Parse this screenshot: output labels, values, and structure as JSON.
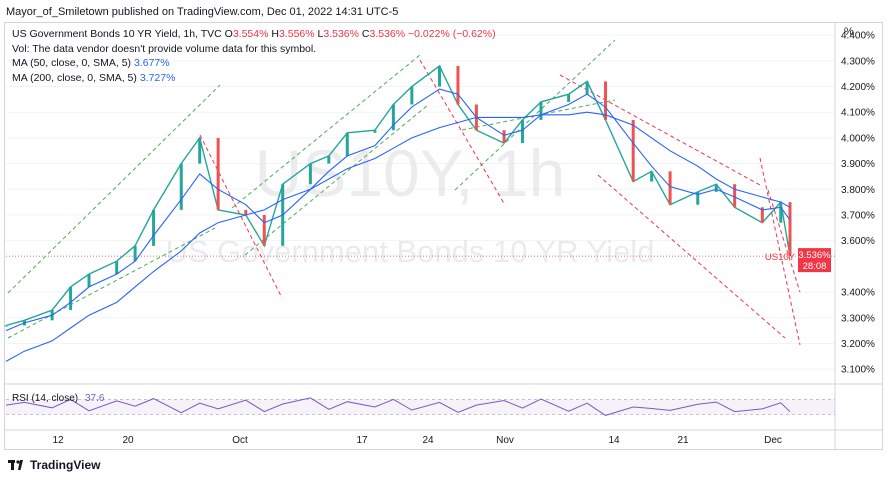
{
  "header": {
    "published": "Mayor_of_Smiletown published on TradingView.com, Dec 01, 2022 14:31 UTC-5"
  },
  "legend": {
    "title": "US Government Bonds 10 YR Yield, 1h, TVC",
    "o_label": "O",
    "o_value": "3.554%",
    "h_label": "H",
    "h_value": "3.556%",
    "l_label": "L",
    "l_value": "3.536%",
    "c_label": "C",
    "c_value": "3.536%",
    "change": "−0.022% (−0.62%)",
    "vol_line": "Vol: The data vendor doesn't provide volume data for this symbol.",
    "ma50_label": "MA (50, close, 0, SMA, 5)",
    "ma50_value": "3.677%",
    "ma200_label": "MA (200, close, 0, SMA, 5)",
    "ma200_value": "3.727%"
  },
  "watermark": {
    "symbol": "US10Y, 1h",
    "name": "US Government Bonds 10 YR Yield"
  },
  "price_axis": {
    "unit": "%",
    "ticks": [
      "4.400%",
      "4.300%",
      "4.200%",
      "4.100%",
      "4.000%",
      "3.900%",
      "3.800%",
      "3.700%",
      "3.600%",
      "3.400%",
      "3.300%",
      "3.200%",
      "3.100%"
    ]
  },
  "last_price": {
    "symbol": "US10Y",
    "value": "3.536%",
    "countdown": "28:08"
  },
  "rsi": {
    "label": "RSI (14, close)",
    "value": "37.6"
  },
  "time_axis": {
    "ticks": [
      "12",
      "20",
      "Oct",
      "17",
      "24",
      "Nov",
      "14",
      "21",
      "Dec"
    ]
  },
  "footer": {
    "logo_text": "TradingView"
  },
  "colors": {
    "up": "#26a69a",
    "down": "#ef5350",
    "ma50": "#2962ff",
    "ma200": "#2962ff",
    "rsi": "#7e57c2",
    "channel_up": "#4caf50",
    "channel_down": "#f23645",
    "last_price": "#f23645"
  },
  "chart_data": {
    "type": "line",
    "title": "US Government Bonds 10 YR Yield, 1h, TVC",
    "ylabel": "%",
    "ylim": [
      3.05,
      4.42
    ],
    "x_dates": [
      "2022-09-07",
      "2022-09-09",
      "2022-09-12",
      "2022-09-14",
      "2022-09-16",
      "2022-09-19",
      "2022-09-21",
      "2022-09-23",
      "2022-09-26",
      "2022-09-28",
      "2022-09-30",
      "2022-10-03",
      "2022-10-05",
      "2022-10-07",
      "2022-10-10",
      "2022-10-12",
      "2022-10-14",
      "2022-10-17",
      "2022-10-19",
      "2022-10-21",
      "2022-10-24",
      "2022-10-26",
      "2022-10-28",
      "2022-10-31",
      "2022-11-02",
      "2022-11-04",
      "2022-11-07",
      "2022-11-09",
      "2022-11-11",
      "2022-11-14",
      "2022-11-16",
      "2022-11-18",
      "2022-11-21",
      "2022-11-23",
      "2022-11-25",
      "2022-11-28",
      "2022-11-30",
      "2022-12-01"
    ],
    "series": [
      {
        "name": "US10Y",
        "values": [
          3.27,
          3.29,
          3.33,
          3.42,
          3.47,
          3.52,
          3.58,
          3.72,
          3.9,
          4.0,
          3.72,
          3.7,
          3.58,
          3.82,
          3.9,
          3.93,
          4.02,
          4.03,
          4.13,
          4.2,
          4.28,
          4.13,
          4.03,
          3.98,
          4.07,
          4.14,
          4.17,
          4.22,
          4.07,
          3.83,
          3.87,
          3.74,
          3.79,
          3.82,
          3.73,
          3.67,
          3.75,
          3.54
        ]
      },
      {
        "name": "MA (50, close, 0, SMA, 5)",
        "values": [
          3.25,
          3.28,
          3.31,
          3.36,
          3.42,
          3.47,
          3.52,
          3.62,
          3.76,
          3.86,
          3.8,
          3.74,
          3.67,
          3.7,
          3.8,
          3.87,
          3.93,
          3.97,
          4.05,
          4.12,
          4.19,
          4.17,
          4.08,
          4.01,
          4.03,
          4.09,
          4.13,
          4.17,
          4.12,
          3.98,
          3.89,
          3.81,
          3.78,
          3.8,
          3.77,
          3.72,
          3.73,
          3.68
        ]
      },
      {
        "name": "MA (200, close, 0, SMA, 5)",
        "values": [
          3.13,
          3.17,
          3.21,
          3.26,
          3.31,
          3.36,
          3.42,
          3.48,
          3.56,
          3.63,
          3.67,
          3.7,
          3.72,
          3.76,
          3.8,
          3.84,
          3.88,
          3.92,
          3.96,
          4.0,
          4.04,
          4.06,
          4.08,
          4.08,
          4.08,
          4.09,
          4.09,
          4.1,
          4.09,
          4.05,
          4.0,
          3.95,
          3.89,
          3.84,
          3.8,
          3.77,
          3.75,
          3.73
        ]
      }
    ],
    "rsi_values": [
      55,
      62,
      48,
      70,
      40,
      66,
      52,
      72,
      35,
      60,
      45,
      68,
      38,
      58,
      74,
      44,
      64,
      50,
      70,
      42,
      62,
      36,
      55,
      67,
      47,
      71,
      39,
      60,
      28,
      50,
      46,
      41,
      57,
      63,
      38,
      45,
      61,
      37.6
    ],
    "grid": true,
    "legend_position": "top-left"
  }
}
